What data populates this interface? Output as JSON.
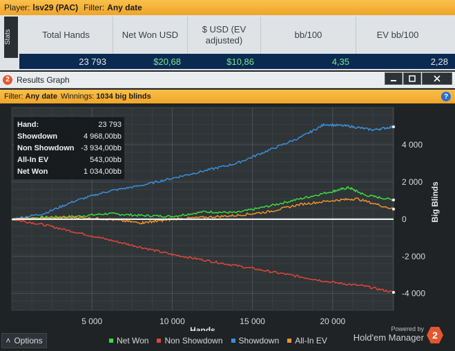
{
  "topbar": {
    "player_label": "Player:",
    "player_value": "lsv29 (PAC)",
    "filter_label": "Filter:",
    "filter_value": "Any date"
  },
  "stats": {
    "tab_label": "Stats",
    "columns": [
      "Total Hands",
      "Net Won USD",
      "$ USD (EV adjusted)",
      "bb/100",
      "EV bb/100"
    ],
    "row": [
      "23 793",
      "$20,68",
      "$10,86",
      "4,35",
      "2,28"
    ]
  },
  "window": {
    "title": "Results Graph",
    "min_icon": "minimize-icon",
    "max_icon": "maximize-icon",
    "close_icon": "close-icon",
    "filter_label": "Filter:",
    "filter_value": "Any date",
    "winnings_label": "Winnings:",
    "winnings_value": "1034 big blinds",
    "help_glyph": "?"
  },
  "tooltip": {
    "rows": [
      {
        "label": "Hand:",
        "value": "23 793"
      },
      {
        "label": "Showdown",
        "value": "4 968,00bb"
      },
      {
        "label": "Non Showdown",
        "value": "-3 934,00bb"
      },
      {
        "label": "All-In EV",
        "value": "543,00bb"
      },
      {
        "label": "Net Won",
        "value": "1 034,00bb"
      }
    ]
  },
  "bottom": {
    "options_label": "Options",
    "powered_by": "Powered by",
    "brand": "Hold'em Manager",
    "brand_glyph": "2"
  },
  "colors": {
    "net_won": "#3ddc3d",
    "non_showdown": "#e0463a",
    "showdown": "#3a8fdc",
    "all_in_ev": "#f0932b"
  },
  "chart_data": {
    "type": "line",
    "title": "",
    "xlabel": "Hands",
    "ylabel": "Big Blinds",
    "xlim": [
      0,
      23793
    ],
    "ylim": [
      -4900,
      6000
    ],
    "xticks": [
      5000,
      10000,
      15000,
      20000
    ],
    "xtick_labels": [
      "5 000",
      "10 000",
      "15 000",
      "20 000"
    ],
    "yticks": [
      4000,
      2000,
      0,
      -2000,
      -4000
    ],
    "ytick_labels": [
      "4 000",
      "2 000",
      "0",
      "-2 000",
      "-4 000"
    ],
    "grid": true,
    "legend_position": "bottom",
    "series": [
      {
        "name": "Net Won",
        "color": "#3ddc3d",
        "x": [
          0,
          2000,
          4000,
          6000,
          8000,
          10000,
          12000,
          14000,
          16000,
          18000,
          20000,
          21000,
          22000,
          23793
        ],
        "y": [
          0,
          100,
          150,
          300,
          200,
          150,
          400,
          350,
          700,
          1100,
          1500,
          1700,
          1300,
          1034
        ]
      },
      {
        "name": "Non Showdown",
        "color": "#e0463a",
        "x": [
          0,
          2000,
          4000,
          6000,
          8000,
          10000,
          12000,
          14000,
          16000,
          18000,
          20000,
          22000,
          23793
        ],
        "y": [
          0,
          -300,
          -700,
          -1100,
          -1500,
          -1900,
          -2200,
          -2500,
          -2800,
          -3100,
          -3400,
          -3600,
          -3934
        ]
      },
      {
        "name": "Showdown",
        "color": "#3a8fdc",
        "x": [
          0,
          2000,
          4000,
          6000,
          8000,
          10000,
          12000,
          14000,
          16000,
          18000,
          19500,
          21000,
          22500,
          23793
        ],
        "y": [
          0,
          300,
          1000,
          1500,
          1800,
          2200,
          2600,
          3000,
          3700,
          4400,
          5100,
          5000,
          4800,
          4968
        ]
      },
      {
        "name": "All-In EV",
        "color": "#f0932b",
        "x": [
          0,
          2000,
          4000,
          6000,
          8000,
          9000,
          10000,
          12000,
          14000,
          16000,
          18000,
          20000,
          21500,
          23793
        ],
        "y": [
          0,
          50,
          100,
          0,
          -200,
          -100,
          0,
          100,
          200,
          400,
          800,
          1000,
          1100,
          543
        ]
      }
    ]
  }
}
